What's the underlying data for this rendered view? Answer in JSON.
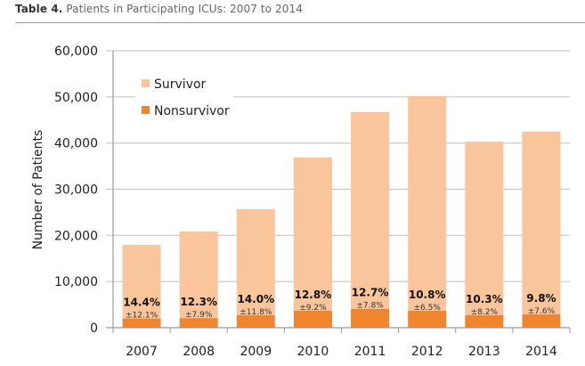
{
  "caption": {
    "label": "Table 4.",
    "text": " Patients in Participating ICUs: 2007 to 2014"
  },
  "chart_data": {
    "type": "bar",
    "stacked": true,
    "title": "",
    "xlabel": "",
    "ylabel": "Number of Patients",
    "ylim": [
      0,
      60000
    ],
    "yticks": [
      0,
      10000,
      20000,
      30000,
      40000,
      50000,
      60000
    ],
    "ytick_labels": [
      "0",
      "10,000",
      "20,000",
      "30,000",
      "40,000",
      "50,000",
      "60,000"
    ],
    "grid": true,
    "legend_position": "top-left",
    "categories": [
      "2007",
      "2008",
      "2009",
      "2010",
      "2011",
      "2012",
      "2013",
      "2014"
    ],
    "series": [
      {
        "name": "Nonsurvivor",
        "color": "#f0852d",
        "values": [
          2000,
          2100,
          2700,
          3700,
          4100,
          3700,
          2700,
          2900
        ]
      },
      {
        "name": "Survivor",
        "color": "#fac59b",
        "values": [
          15950,
          18750,
          23000,
          33200,
          42600,
          46500,
          37600,
          39600
        ]
      }
    ],
    "totals": [
      17950,
      20850,
      25700,
      36900,
      46700,
      50200,
      40300,
      42500
    ],
    "annotations": {
      "mortality": [
        "14.4%",
        "12.3%",
        "14.0%",
        "12.8%",
        "12.7%",
        "10.8%",
        "10.3%",
        "9.8%"
      ],
      "std_dev": [
        "±12.1%",
        "±7.9%",
        "±11.8%",
        "±9.2%",
        "±7.8%",
        "±6.5%",
        "±8.2%",
        "±7.6%"
      ]
    }
  }
}
